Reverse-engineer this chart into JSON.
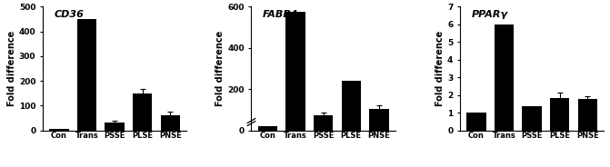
{
  "charts": [
    {
      "title": "CD36",
      "ylabel": "Fold difference",
      "categories": [
        "Con",
        "Trans",
        "PSSE",
        "PLSE",
        "PNSE"
      ],
      "values": [
        5,
        450,
        30,
        150,
        62
      ],
      "errors": [
        0,
        0,
        8,
        18,
        12
      ],
      "ylim": [
        0,
        500
      ],
      "yticks": [
        0,
        100,
        200,
        300,
        400,
        500
      ],
      "bar_color": "#000000",
      "broken_axis": false
    },
    {
      "title": "FABP4",
      "ylabel": "Fold difference",
      "categories": [
        "Con",
        "Trans",
        "PSSE",
        "PLSE",
        "PNSE"
      ],
      "values": [
        18,
        575,
        75,
        240,
        105
      ],
      "errors": [
        0,
        0,
        12,
        0,
        18
      ],
      "ylim": [
        0,
        600
      ],
      "yticks": [
        0,
        200,
        400,
        600
      ],
      "bar_color": "#000000",
      "broken_axis": true
    },
    {
      "title": "PPARγ",
      "ylabel": "Fold difference",
      "categories": [
        "Con",
        "Trans",
        "PSSE",
        "PLSE",
        "PNSE"
      ],
      "values": [
        1.0,
        6.0,
        1.35,
        1.85,
        1.75
      ],
      "errors": [
        0,
        0,
        0,
        0.28,
        0.18
      ],
      "ylim": [
        0,
        7
      ],
      "yticks": [
        0,
        1,
        2,
        3,
        4,
        5,
        6,
        7
      ],
      "bar_color": "#000000",
      "broken_axis": false
    }
  ],
  "fig_width": 6.71,
  "fig_height": 1.84,
  "dpi": 100
}
